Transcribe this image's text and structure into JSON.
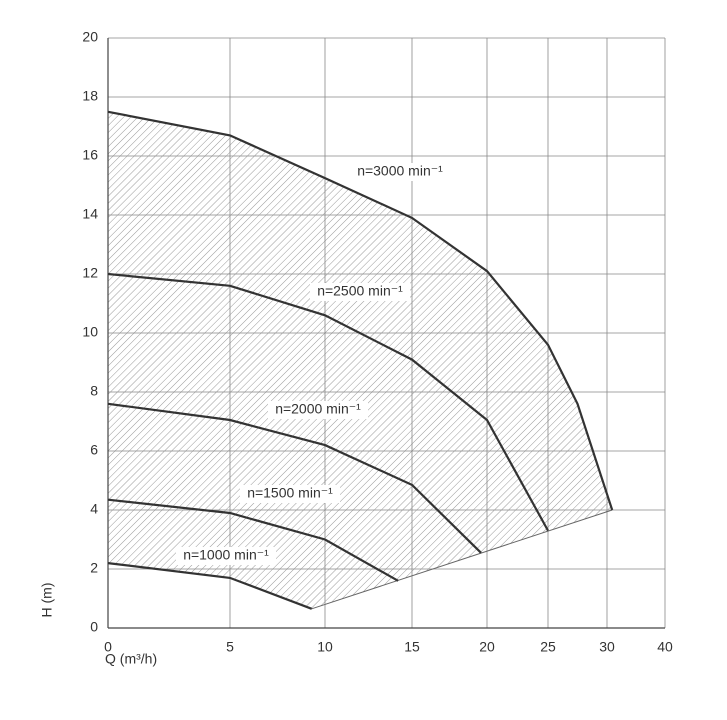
{
  "chart_data": {
    "type": "line",
    "x_label": "Q (m³/h)",
    "y_label": "H (m)",
    "xlim": [
      0,
      40
    ],
    "xticks": [
      0,
      5,
      10,
      15,
      20,
      25,
      30,
      40
    ],
    "ylim": [
      0,
      20
    ],
    "yticks": [
      0,
      2,
      4,
      6,
      8,
      10,
      12,
      14,
      16,
      18,
      20
    ],
    "grid": true,
    "color": "#333333",
    "series": [
      {
        "name": "n=3000 min⁻¹",
        "x": [
          0,
          5,
          10,
          15,
          20,
          25,
          27.5,
          30.9
        ],
        "values": [
          17.5,
          16.7,
          15.25,
          13.9,
          12.1,
          9.6,
          7.6,
          4
        ]
      },
      {
        "name": "n=2500 min⁻¹",
        "x": [
          0,
          5,
          10,
          15,
          20,
          25
        ],
        "values": [
          12,
          11.6,
          10.6,
          9.1,
          7.05,
          3.3
        ]
      },
      {
        "name": "n=2000 min⁻¹",
        "x": [
          0,
          5,
          10,
          15,
          19.6
        ],
        "values": [
          7.6,
          7.05,
          6.2,
          4.85,
          2.55
        ]
      },
      {
        "name": "n=1500 min⁻¹",
        "x": [
          0,
          5,
          10,
          14.2
        ],
        "values": [
          4.35,
          3.9,
          3.0,
          1.6
        ]
      },
      {
        "name": "n=1000 min⁻¹",
        "x": [
          0,
          5,
          9.3
        ],
        "values": [
          2.2,
          1.7,
          0.65
        ]
      }
    ]
  }
}
